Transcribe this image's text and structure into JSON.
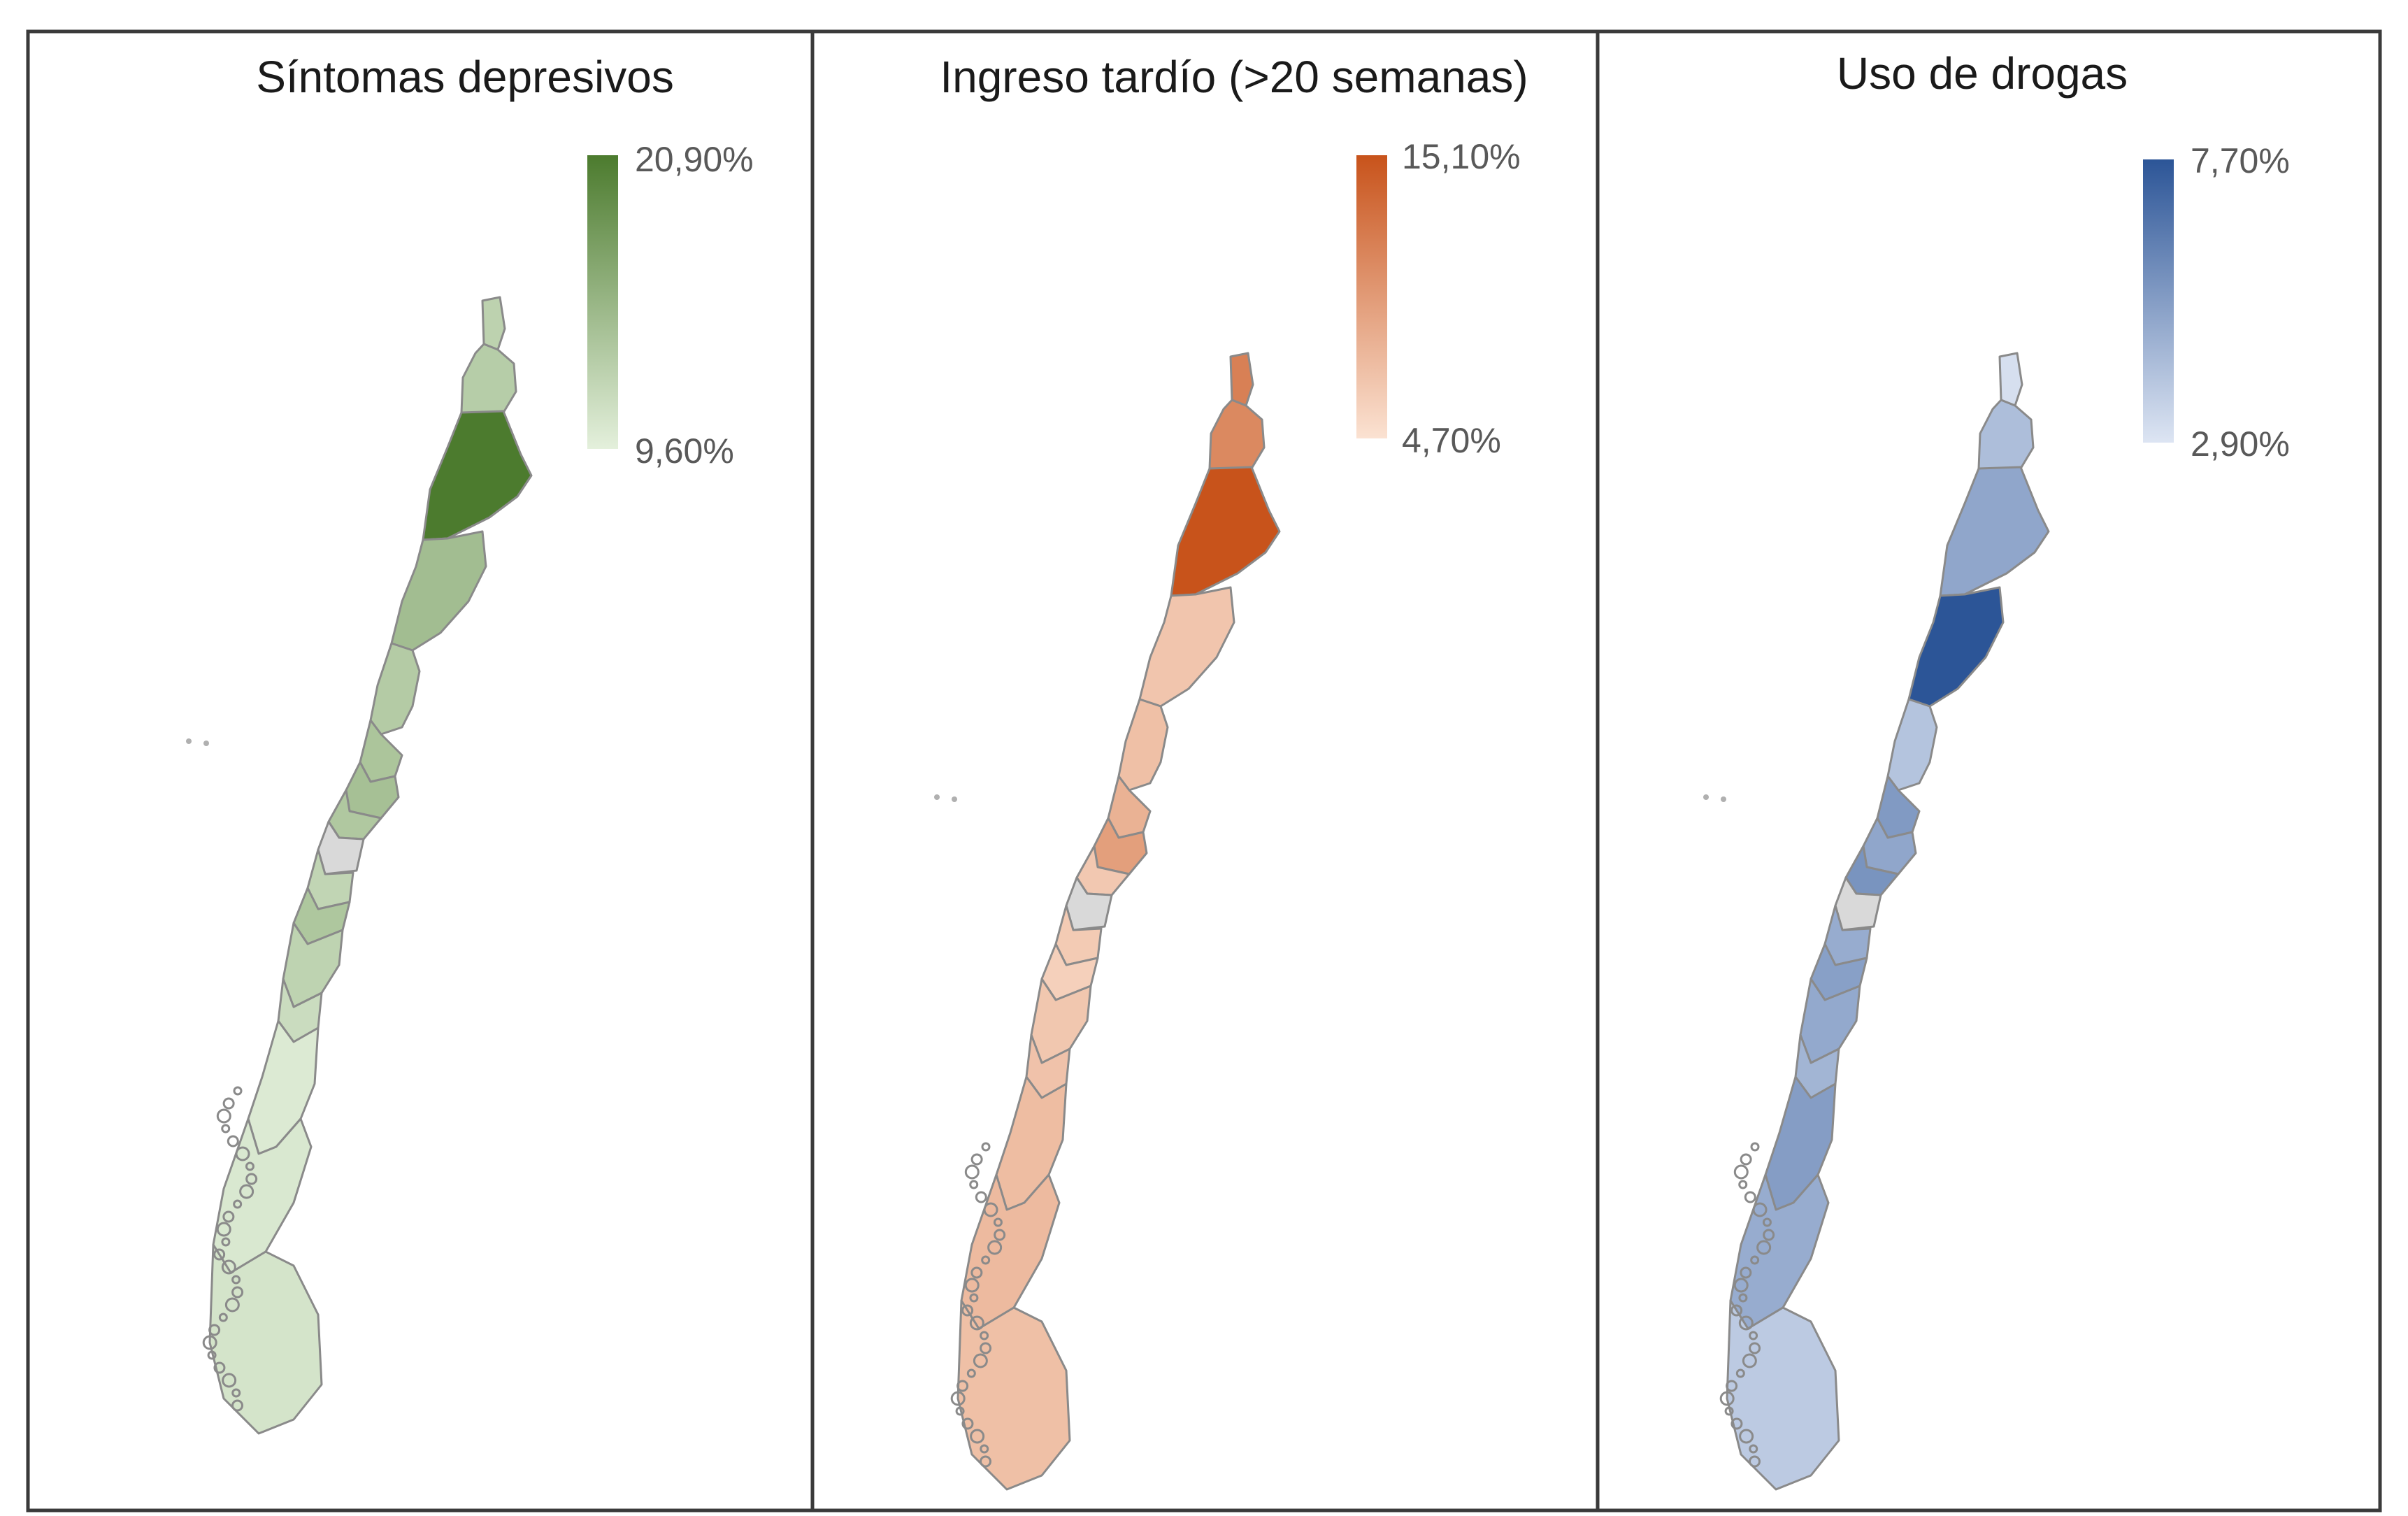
{
  "no_data_color": "#d9d9d9",
  "border_color": "#8a8a8a",
  "panels": [
    {
      "id": "depresivos",
      "title": "Síntomas depresivos",
      "legend": {
        "max_label": "20,90%",
        "min_label": "9,60%",
        "max_value": 20.9,
        "min_value": 9.6
      },
      "colors": {
        "high": "#4c7b2e",
        "low": "#e4f0dc"
      },
      "regions": [
        {
          "name": "Arica y Parinacota",
          "value": 12.5
        },
        {
          "name": "Tarapacá",
          "value": 13.0
        },
        {
          "name": "Antofagasta",
          "value": 20.9
        },
        {
          "name": "Atacama",
          "value": 14.5
        },
        {
          "name": "Coquimbo",
          "value": 13.2
        },
        {
          "name": "Valparaíso",
          "value": 13.8
        },
        {
          "name": "Metropolitana",
          "value": 14.2
        },
        {
          "name": "O'Higgins",
          "value": 13.5
        },
        {
          "name": "Maule",
          "value": null
        },
        {
          "name": "Ñuble",
          "value": 12.2
        },
        {
          "name": "Biobío",
          "value": 13.6
        },
        {
          "name": "La Araucanía",
          "value": 12.4
        },
        {
          "name": "Los Ríos",
          "value": 11.5
        },
        {
          "name": "Los Lagos",
          "value": 10.2
        },
        {
          "name": "Aysén",
          "value": 10.4
        },
        {
          "name": "Magallanes",
          "value": 10.8
        }
      ]
    },
    {
      "id": "ingreso",
      "title": "Ingreso tardío (>20 semanas)",
      "legend": {
        "max_label": "15,10%",
        "min_label": "4,70%",
        "max_value": 15.1,
        "min_value": 4.7
      },
      "colors": {
        "high": "#c8531b",
        "low": "#fbe2d2"
      },
      "regions": [
        {
          "name": "Arica y Parinacota",
          "value": 11.8
        },
        {
          "name": "Tarapacá",
          "value": 11.2
        },
        {
          "name": "Antofagasta",
          "value": 15.1
        },
        {
          "name": "Atacama",
          "value": 6.8
        },
        {
          "name": "Coquimbo",
          "value": 7.2
        },
        {
          "name": "Valparaíso",
          "value": 8.2
        },
        {
          "name": "Metropolitana",
          "value": 9.6
        },
        {
          "name": "O'Higgins",
          "value": 6.6
        },
        {
          "name": "Maule",
          "value": null
        },
        {
          "name": "Ñuble",
          "value": 6.4
        },
        {
          "name": "Biobío",
          "value": 6.0
        },
        {
          "name": "La Araucanía",
          "value": 6.7
        },
        {
          "name": "Los Ríos",
          "value": 7.0
        },
        {
          "name": "Los Lagos",
          "value": 7.4
        },
        {
          "name": "Aysén",
          "value": 7.6
        },
        {
          "name": "Magallanes",
          "value": 7.2
        }
      ]
    },
    {
      "id": "drogas",
      "title": "Uso de drogas",
      "legend": {
        "max_label": "7,70%",
        "min_label": "2,90%",
        "max_value": 7.7,
        "min_value": 2.9
      },
      "colors": {
        "high": "#2c5597",
        "low": "#dde5f3"
      },
      "regions": [
        {
          "name": "Arica y Parinacota",
          "value": 3.1
        },
        {
          "name": "Tarapacá",
          "value": 4.2
        },
        {
          "name": "Antofagasta",
          "value": 5.0
        },
        {
          "name": "Atacama",
          "value": 7.7
        },
        {
          "name": "Coquimbo",
          "value": 4.0
        },
        {
          "name": "Valparaíso",
          "value": 5.4
        },
        {
          "name": "Metropolitana",
          "value": 5.0
        },
        {
          "name": "O'Higgins",
          "value": 5.6
        },
        {
          "name": "Maule",
          "value": null
        },
        {
          "name": "Ñuble",
          "value": 4.8
        },
        {
          "name": "Biobío",
          "value": 5.2
        },
        {
          "name": "La Araucanía",
          "value": 4.9
        },
        {
          "name": "Los Ríos",
          "value": 4.5
        },
        {
          "name": "Los Lagos",
          "value": 5.3
        },
        {
          "name": "Aysén",
          "value": 4.8
        },
        {
          "name": "Magallanes",
          "value": 3.8
        }
      ]
    }
  ]
}
